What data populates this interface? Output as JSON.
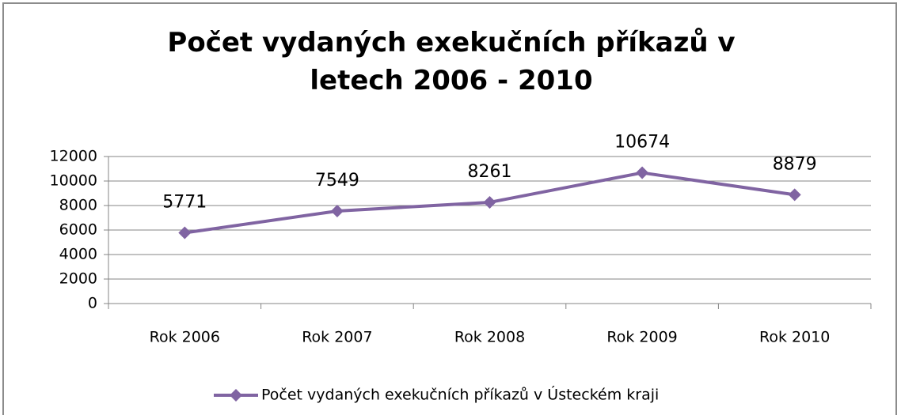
{
  "chart_data": {
    "type": "line",
    "title": "Počet vydaných exekučních příkazů v letech 2006 - 2010",
    "categories": [
      "Rok 2006",
      "Rok 2007",
      "Rok 2008",
      "Rok 2009",
      "Rok 2010"
    ],
    "series": [
      {
        "name": "Počet vydaných exekučních příkazů v Ústeckém kraji",
        "color": "#8064a2",
        "values": [
          5771,
          7549,
          8261,
          10674,
          8879
        ]
      }
    ],
    "ylim": [
      0,
      12000
    ],
    "yticks": [
      0,
      2000,
      4000,
      6000,
      8000,
      10000,
      12000
    ],
    "grid": true,
    "legend": "bottom",
    "data_labels": true
  }
}
